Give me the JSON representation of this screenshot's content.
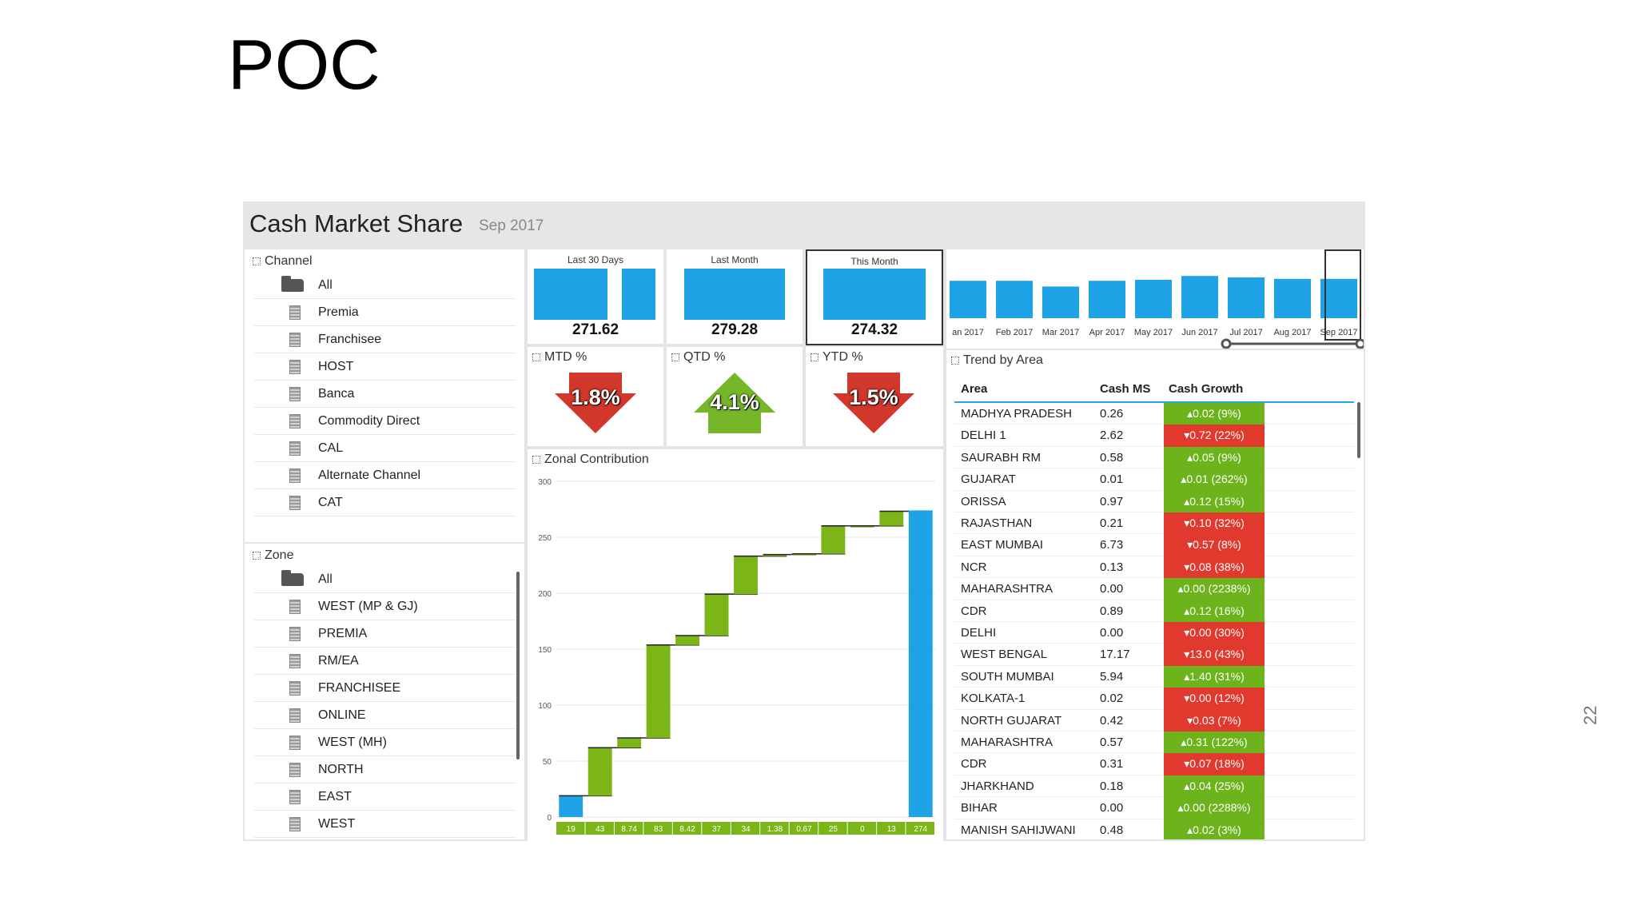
{
  "slide": {
    "title": "POC",
    "page_number": "22"
  },
  "dashboard": {
    "title": "Cash Market Share",
    "date": "Sep 2017"
  },
  "channel": {
    "label": "Channel",
    "items": [
      "All",
      "Premia",
      "Franchisee",
      "HOST",
      "Banca",
      "Commodity Direct",
      "CAL",
      "Alternate Channel",
      "CAT"
    ]
  },
  "zone": {
    "label": "Zone",
    "items": [
      "All",
      "WEST (MP & GJ)",
      "PREMIA",
      "RM/EA",
      "FRANCHISEE",
      "ONLINE",
      "WEST (MH)",
      "NORTH",
      "EAST",
      "WEST"
    ]
  },
  "kpis": {
    "last30": {
      "label": "Last 30 Days",
      "value": "271.62"
    },
    "lastMonth": {
      "label": "Last Month",
      "value": "279.28"
    },
    "thisMonth": {
      "label": "This Month",
      "value": "274.32"
    }
  },
  "growth": {
    "mtd": {
      "label": "MTD %",
      "value": "1.8%",
      "direction": "down"
    },
    "qtd": {
      "label": "QTD %",
      "value": "4.1%",
      "direction": "up"
    },
    "ytd": {
      "label": "YTD %",
      "value": "1.5%",
      "direction": "down"
    }
  },
  "trend_months": {
    "labels": [
      "an 2017",
      "Feb 2017",
      "Mar 2017",
      "Apr 2017",
      "May 2017",
      "Jun 2017",
      "Jul 2017",
      "Aug 2017",
      "Sep 2017"
    ],
    "relative_values": [
      0.78,
      0.78,
      0.66,
      0.78,
      0.8,
      0.88,
      0.85,
      0.82,
      0.82
    ]
  },
  "trend": {
    "label": "Trend by Area",
    "headers": {
      "area": "Area",
      "ms": "Cash MS",
      "growth": "Cash Growth"
    },
    "rows": [
      {
        "area": "MADHYA PRADESH",
        "ms": "0.26",
        "growth": "▴0.02 (9%)",
        "color": "g"
      },
      {
        "area": "DELHI 1",
        "ms": "2.62",
        "growth": "▾0.72 (22%)",
        "color": "r"
      },
      {
        "area": "SAURABH RM",
        "ms": "0.58",
        "growth": "▴0.05 (9%)",
        "color": "g"
      },
      {
        "area": "GUJARAT",
        "ms": "0.01",
        "growth": "▴0.01 (262%)",
        "color": "g"
      },
      {
        "area": "ORISSA",
        "ms": "0.97",
        "growth": "▴0.12 (15%)",
        "color": "g"
      },
      {
        "area": "RAJASTHAN",
        "ms": "0.21",
        "growth": "▾0.10 (32%)",
        "color": "r"
      },
      {
        "area": "EAST MUMBAI",
        "ms": "6.73",
        "growth": "▾0.57 (8%)",
        "color": "r"
      },
      {
        "area": "NCR",
        "ms": "0.13",
        "growth": "▾0.08 (38%)",
        "color": "r"
      },
      {
        "area": "MAHARASHTRA",
        "ms": "0.00",
        "growth": "▴0.00 (2238%)",
        "color": "g"
      },
      {
        "area": "CDR",
        "ms": "0.89",
        "growth": "▴0.12 (16%)",
        "color": "g"
      },
      {
        "area": "DELHI",
        "ms": "0.00",
        "growth": "▾0.00 (30%)",
        "color": "r"
      },
      {
        "area": "WEST BENGAL",
        "ms": "17.17",
        "growth": "▾13.0 (43%)",
        "color": "r"
      },
      {
        "area": "SOUTH MUMBAI",
        "ms": "5.94",
        "growth": "▴1.40 (31%)",
        "color": "g"
      },
      {
        "area": "KOLKATA-1",
        "ms": "0.02",
        "growth": "▾0.00 (12%)",
        "color": "r"
      },
      {
        "area": "NORTH GUJARAT",
        "ms": "0.42",
        "growth": "▾0.03 (7%)",
        "color": "r"
      },
      {
        "area": "MAHARASHTRA",
        "ms": "0.57",
        "growth": "▴0.31 (122%)",
        "color": "g"
      },
      {
        "area": "CDR",
        "ms": "0.31",
        "growth": "▾0.07 (18%)",
        "color": "r"
      },
      {
        "area": "JHARKHAND",
        "ms": "0.18",
        "growth": "▴0.04 (25%)",
        "color": "g"
      },
      {
        "area": "BIHAR",
        "ms": "0.00",
        "growth": "▴0.00 (2288%)",
        "color": "g"
      },
      {
        "area": "MANISH SAHIJWANI",
        "ms": "0.48",
        "growth": "▴0.02 (3%)",
        "color": "g"
      }
    ]
  },
  "chart_data": {
    "type": "waterfall",
    "title": "Zonal Contribution",
    "ylim": [
      0,
      300
    ],
    "yticks": [
      0,
      50,
      100,
      150,
      200,
      250,
      300
    ],
    "step_labels": [
      "19",
      "43",
      "8.74",
      "83",
      "8.42",
      "37",
      "34",
      "1.38",
      "0.67",
      "25",
      "0",
      "13",
      "274"
    ],
    "increments": [
      19,
      43,
      8.74,
      83,
      8.42,
      37,
      34,
      1.38,
      0.67,
      25,
      0,
      13
    ],
    "total": 274,
    "colors": {
      "first": "#1ea4e6",
      "step": "#7cb518",
      "total": "#1ea4e6",
      "label_bg": "#7cb518"
    }
  }
}
